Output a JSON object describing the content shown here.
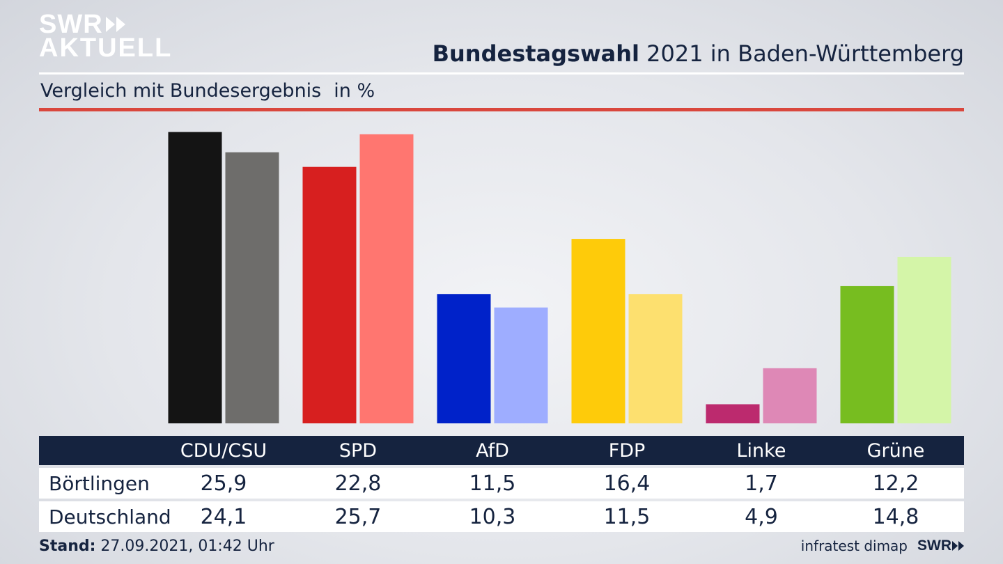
{
  "logo": {
    "line1": "SWR",
    "line2": "AKTUELL"
  },
  "header": {
    "title_bold": "Bundestagswahl",
    "title_rest": " 2021 in Baden-Württemberg",
    "subtitle": "Vergleich mit Bundesergebnis",
    "unit": "in %"
  },
  "chart_data": {
    "type": "bar",
    "categories": [
      "CDU/CSU",
      "SPD",
      "AfD",
      "FDP",
      "Linke",
      "Grüne"
    ],
    "series": [
      {
        "name": "Börtlingen",
        "values": [
          25.9,
          22.8,
          11.5,
          16.4,
          1.7,
          12.2
        ],
        "colors": [
          "#141414",
          "#d71f1f",
          "#0022c9",
          "#fecb0a",
          "#bc2a6e",
          "#77bd20"
        ]
      },
      {
        "name": "Deutschland",
        "values": [
          24.1,
          25.7,
          10.3,
          11.5,
          4.9,
          14.8
        ],
        "colors": [
          "#6e6d6b",
          "#ff7670",
          "#9eadff",
          "#fde06f",
          "#de88b6",
          "#d4f5a8"
        ]
      }
    ],
    "value_labels": {
      "Börtlingen": [
        "25,9",
        "22,8",
        "11,5",
        "16,4",
        "1,7",
        "12,2"
      ],
      "Deutschland": [
        "24,1",
        "25,7",
        "10,3",
        "11,5",
        "4,9",
        "14,8"
      ]
    },
    "ylim": [
      0,
      26
    ],
    "grid": false
  },
  "footer": {
    "stand_label": "Stand:",
    "stand_value": " 27.09.2021, 01:42 Uhr",
    "source": "infratest dimap",
    "brand": "SWR"
  }
}
